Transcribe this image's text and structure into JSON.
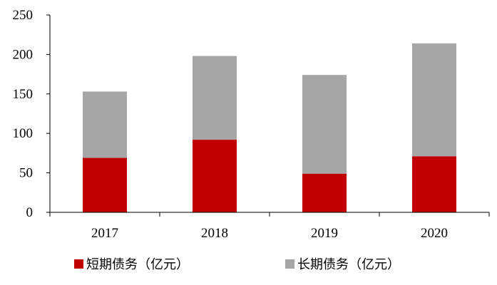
{
  "chart_data": {
    "type": "bar",
    "stacked": true,
    "categories": [
      "2017",
      "2018",
      "2019",
      "2020"
    ],
    "series": [
      {
        "name": "短期债务（亿元）",
        "color": "#C00000",
        "values": [
          69,
          92,
          49,
          71
        ]
      },
      {
        "name": "长期债务（亿元）",
        "color": "#A6A6A6",
        "values": [
          84,
          106,
          125,
          143
        ]
      }
    ],
    "ylim": [
      0,
      250
    ],
    "yticks": [
      0,
      50,
      100,
      150,
      200,
      250
    ],
    "grid": false,
    "legend": "bottom"
  }
}
